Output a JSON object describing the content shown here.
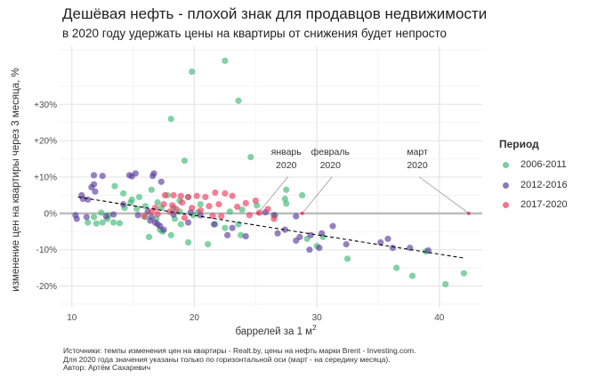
{
  "chart_data": {
    "type": "scatter",
    "title": "Дешёвая нефть - плохой знак для продавцов недвижимости",
    "subtitle": "в 2020 году удержать цены на квартиры от снижения будет непросто",
    "xlabel": "баррелей за 1 м",
    "xlabel_sup": "2",
    "ylabel": "изменение цен на квартиры через 3 месяца, %",
    "xlim": [
      9,
      43.5
    ],
    "ylim": [
      -26,
      46
    ],
    "x_ticks": [
      10,
      20,
      30,
      40
    ],
    "x_tick_labels": [
      "10",
      "20",
      "30",
      "40"
    ],
    "y_ticks": [
      -20,
      -10,
      0,
      10,
      20,
      30
    ],
    "y_tick_labels": [
      "-20%",
      "-10%",
      "0%",
      "+10%",
      "+20%",
      "+30%"
    ],
    "grid": true,
    "legend_title": "Период",
    "legend_position": "right",
    "series": [
      {
        "name": "2006-2011",
        "color": "#3fba75",
        "points": [
          [
            19.8,
            39
          ],
          [
            22.5,
            42
          ],
          [
            23.6,
            31
          ],
          [
            18.1,
            26
          ],
          [
            19.2,
            14.5
          ],
          [
            24.6,
            15.5
          ],
          [
            16.5,
            6.5
          ],
          [
            17.8,
            5
          ],
          [
            13.5,
            7.5
          ],
          [
            14.2,
            5.5
          ],
          [
            15.5,
            4.5
          ],
          [
            19.5,
            4.5
          ],
          [
            18.8,
            3.5
          ],
          [
            17,
            3
          ],
          [
            14.8,
            3
          ],
          [
            16,
            2
          ],
          [
            17.3,
            1.5
          ],
          [
            18.3,
            1.5
          ],
          [
            14.3,
            1.5
          ],
          [
            11.8,
            -1
          ],
          [
            12.5,
            -2.5
          ],
          [
            13,
            -0.5
          ],
          [
            13.4,
            -2.5
          ],
          [
            12,
            -2.8
          ],
          [
            11.3,
            -2.5
          ],
          [
            13.9,
            -2.7
          ],
          [
            16,
            -1
          ],
          [
            16.3,
            -6.5
          ],
          [
            17.4,
            -5
          ],
          [
            19.5,
            -8
          ],
          [
            18.4,
            -1.5
          ],
          [
            18.8,
            0.5
          ],
          [
            19.9,
            -0.5
          ],
          [
            21.7,
            -3
          ],
          [
            21.1,
            -8.5
          ],
          [
            22.5,
            -4
          ],
          [
            23.6,
            -3
          ],
          [
            23.8,
            -6
          ],
          [
            23.9,
            1
          ],
          [
            25.1,
            2.2
          ],
          [
            20.3,
            0.3
          ],
          [
            17.2,
            -4.5
          ],
          [
            18.1,
            -6
          ],
          [
            16.9,
            -1.5
          ],
          [
            14.9,
            3.8
          ],
          [
            18.9,
            -3
          ],
          [
            20.5,
            2.5
          ],
          [
            22.9,
            0.5
          ],
          [
            27.5,
            6.5
          ],
          [
            27.4,
            4
          ],
          [
            28.8,
            5
          ],
          [
            27.5,
            2.7
          ],
          [
            26.6,
            -0.5
          ],
          [
            29.2,
            -7
          ],
          [
            30,
            -9
          ],
          [
            30.5,
            -6.5
          ],
          [
            32.5,
            -12.5
          ],
          [
            36.5,
            -15
          ],
          [
            38.9,
            -10.5
          ],
          [
            37.8,
            -17.2
          ],
          [
            40.5,
            -19.5
          ],
          [
            42,
            -16.5
          ],
          [
            12.4,
            0.2
          ],
          [
            12.9,
            -1.5
          ],
          [
            15.3,
            1.3
          ]
        ]
      },
      {
        "name": "2012-2016",
        "color": "#5e3e9e",
        "points": [
          [
            11.8,
            10.5
          ],
          [
            12.5,
            10.3
          ],
          [
            14.7,
            10.5
          ],
          [
            14.9,
            10.2
          ],
          [
            15.2,
            11
          ],
          [
            16.7,
            11
          ],
          [
            16.6,
            10.3
          ],
          [
            11.6,
            7.2
          ],
          [
            11.8,
            8
          ],
          [
            11.9,
            6
          ],
          [
            10.8,
            5
          ],
          [
            10.9,
            4
          ],
          [
            11.3,
            3.8
          ],
          [
            17.3,
            8.7
          ],
          [
            14.2,
            2.5
          ],
          [
            10.3,
            -0.5
          ],
          [
            10.4,
            -1.5
          ],
          [
            11.2,
            -1
          ],
          [
            12.8,
            -0.8
          ],
          [
            13.4,
            -0.3
          ],
          [
            15.4,
            -0.5
          ],
          [
            16.2,
            0.5
          ],
          [
            16.5,
            -1
          ],
          [
            16.8,
            -2.5
          ],
          [
            17,
            -3
          ],
          [
            17.2,
            -3.5
          ],
          [
            17.5,
            -4.5
          ],
          [
            16.4,
            -2
          ],
          [
            18.3,
            -0.3
          ],
          [
            19.7,
            0.3
          ],
          [
            20.5,
            -0.5
          ],
          [
            23.1,
            -4
          ],
          [
            22.7,
            -6
          ],
          [
            21.6,
            -3
          ],
          [
            25.8,
            0.3
          ],
          [
            26.5,
            -0.5
          ],
          [
            28.3,
            -0.8
          ],
          [
            24.2,
            -6.3
          ],
          [
            26.8,
            -5.5
          ],
          [
            27.4,
            -4.5
          ],
          [
            28.3,
            -7.5
          ],
          [
            28.6,
            -6.5
          ],
          [
            29.5,
            -6
          ],
          [
            30.4,
            -5.5
          ],
          [
            31.3,
            -3.5
          ],
          [
            29.4,
            -10
          ],
          [
            32.4,
            -8.5
          ],
          [
            35.2,
            -8
          ],
          [
            35.8,
            -7
          ],
          [
            36.2,
            -9.5
          ],
          [
            37.6,
            -9.5
          ],
          [
            39.1,
            -10.2
          ],
          [
            30.2,
            -9.5
          ],
          [
            19.5,
            -2.5
          ]
        ]
      },
      {
        "name": "2017-2020",
        "color": "#f03a5e",
        "points": [
          [
            17.6,
            5
          ],
          [
            18.3,
            5
          ],
          [
            18.9,
            4.8
          ],
          [
            19.5,
            4.5
          ],
          [
            20.2,
            4.8
          ],
          [
            20.9,
            4.5
          ],
          [
            21.7,
            5.7
          ],
          [
            22.5,
            5.5
          ],
          [
            23.1,
            4.8
          ],
          [
            19,
            3
          ],
          [
            18.2,
            2.2
          ],
          [
            19.8,
            1.5
          ],
          [
            21.2,
            2
          ],
          [
            22,
            2.5
          ],
          [
            23.5,
            1.8
          ],
          [
            24.2,
            2.8
          ],
          [
            16.5,
            0.5
          ],
          [
            17,
            -0.2
          ],
          [
            18,
            0.5
          ],
          [
            18.5,
            1.2
          ],
          [
            20.5,
            0.8
          ],
          [
            21.5,
            -0.7
          ],
          [
            22.2,
            -0.8
          ],
          [
            24.5,
            -0.5
          ],
          [
            25.3,
            0.2
          ],
          [
            26,
            1.2
          ],
          [
            16.8,
            1.5
          ],
          [
            17.5,
            2.5
          ],
          [
            15.9,
            -0.8
          ],
          [
            19.2,
            -1.2
          ],
          [
            25,
            3.5
          ],
          [
            26.5,
            -1.5
          ]
        ]
      },
      {
        "name": "2020",
        "color": "#f03a5e",
        "points": [
          [
            25.2,
            0
          ],
          [
            28.8,
            0
          ],
          [
            42.4,
            0
          ]
        ],
        "labels": [
          "январь\n2020",
          "февраль\n2020",
          "март\n2020"
        ]
      }
    ],
    "trend_line": {
      "style": "dashed",
      "x": [
        10.5,
        42
      ],
      "y": [
        4.5,
        -12.3
      ]
    },
    "hline": {
      "y": 0,
      "color": "#bdbdbd"
    },
    "annotations": [
      {
        "line1": "январь",
        "line2": "2020",
        "target": [
          25.2,
          0
        ],
        "text_at": [
          27.5,
          13
        ]
      },
      {
        "line1": "февраль",
        "line2": "2020",
        "target": [
          28.8,
          0
        ],
        "text_at": [
          31.1,
          13
        ]
      },
      {
        "line1": "март",
        "line2": "2020",
        "target": [
          42.4,
          0
        ],
        "text_at": [
          38.2,
          13
        ]
      }
    ]
  },
  "caption": {
    "line1": "Источники: темпы изменения цен на квартиры - Realt.by, цены на нефть марки Brent - Investing.com.",
    "line2": "Для 2020 года значения указаны только по горизонтальной оси (март - на середину месяца).",
    "line3": "Автор: Артём Сахаревич"
  }
}
